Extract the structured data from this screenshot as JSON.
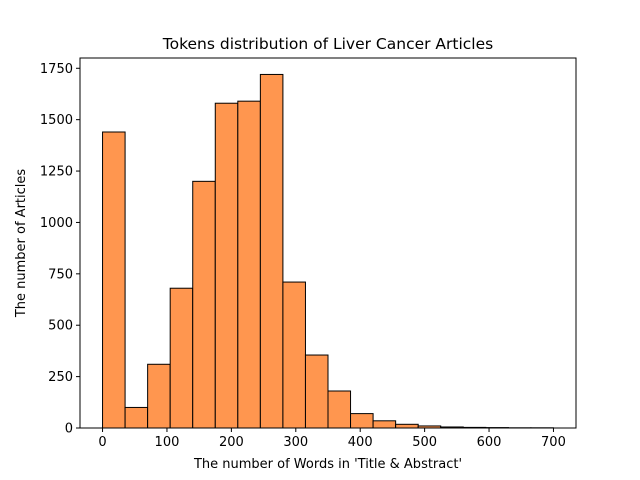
{
  "chart_data": {
    "type": "bar",
    "title": "Tokens distribution of Liver Cancer Articles",
    "xlabel": "The number of Words in  'Title & Abstract'",
    "ylabel": "The number of Articles",
    "xlim": [
      -35,
      735
    ],
    "ylim": [
      0,
      1800
    ],
    "xticks": [
      0,
      100,
      200,
      300,
      400,
      500,
      600,
      700
    ],
    "yticks": [
      0,
      250,
      500,
      750,
      1000,
      1250,
      1500,
      1750
    ],
    "bin_edges": [
      0,
      35,
      70,
      105,
      140,
      175,
      210,
      245,
      280,
      315,
      350,
      385,
      420,
      455,
      490,
      525,
      560,
      595,
      630,
      665,
      700
    ],
    "values": [
      1440,
      100,
      310,
      680,
      1200,
      1580,
      1590,
      1720,
      710,
      355,
      180,
      70,
      35,
      18,
      10,
      5,
      3,
      2,
      1,
      1
    ],
    "bar_color": "#ff964f",
    "edge_color": "#000000",
    "grid": false,
    "legend": "none"
  }
}
